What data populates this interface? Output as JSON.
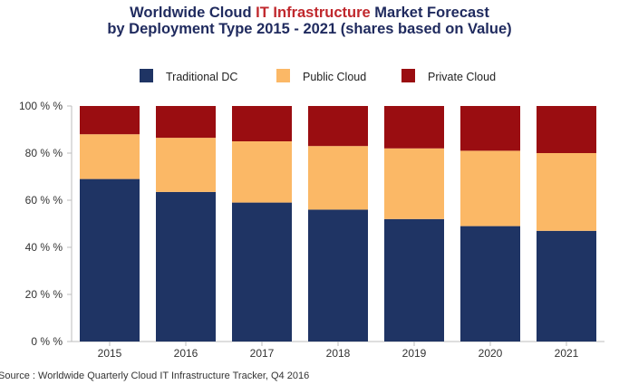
{
  "title": {
    "line1_pre": "Worldwide Cloud ",
    "line1_accent": "IT Infrastructure",
    "line1_post": " Market Forecast",
    "line2": "by Deployment Type  2015 - 2021 (shares based on Value)"
  },
  "colors": {
    "traditional": "#1f3464",
    "public": "#fbb866",
    "private": "#9a0d11",
    "title": "#1f2a5e",
    "accent": "#c0282d"
  },
  "source": "Source : Worldwide Quarterly Cloud IT Infrastructure Tracker, Q4 2016",
  "chart_data": {
    "type": "bar",
    "stacked": true,
    "title": "Worldwide Cloud IT Infrastructure Market Forecast by Deployment Type  2015 - 2021 (shares based on Value)",
    "categories": [
      "2015",
      "2016",
      "2017",
      "2018",
      "2019",
      "2020",
      "2021"
    ],
    "series": [
      {
        "name": "Traditional DC",
        "values": [
          69,
          63.5,
          59,
          56,
          52,
          49,
          47
        ]
      },
      {
        "name": "Public Cloud",
        "values": [
          19,
          23,
          26,
          27,
          30,
          32,
          33
        ]
      },
      {
        "name": "Private Cloud",
        "values": [
          12,
          13.5,
          15,
          17,
          18,
          19,
          20
        ]
      }
    ],
    "yticks": [
      "0 % %",
      "20 % %",
      "40 % %",
      "60 % %",
      "80 % %",
      "100 % %"
    ],
    "ylim": [
      0,
      100
    ],
    "grid": false,
    "legend_position": "top-center"
  }
}
